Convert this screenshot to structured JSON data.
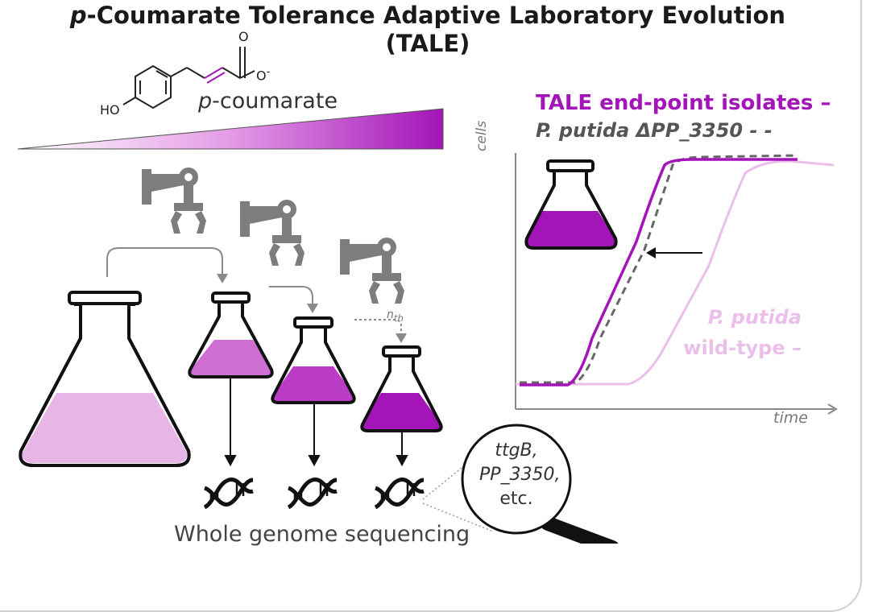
{
  "title": {
    "italic_prefix": "p",
    "rest_line1": "-Coumarate Tolerance Adaptive Laboratory Evolution",
    "line2": "(TALE)"
  },
  "molecule": {
    "ho": "HO",
    "o_top": "O",
    "o_neg": "O",
    "charge": "-",
    "name_prefix": "p",
    "name_rest": "-coumarate"
  },
  "legend": {
    "tale": "TALE end-point isolates –",
    "mutant": "P. putida ΔPP_3350 - -",
    "wt_line1": "P. putida",
    "wt_line2": "wild-type –"
  },
  "axes": {
    "y": "cells",
    "x": "time"
  },
  "transfer_label": {
    "base": "n",
    "sub": "th"
  },
  "lens": {
    "gene1": "ttgB,",
    "gene2": "PP_3350,",
    "etc": "etc."
  },
  "footer": "Whole genome sequencing",
  "colors": {
    "tale": "#a315b8",
    "mutant": "#666666",
    "wildtype": "#ebbfea",
    "flask_light": "#e7b5e6",
    "flask_mid": "#cf6ed5",
    "flask_dark": "#b01cc0",
    "robot": "#7d7d7d"
  },
  "icons": [
    "flask-icon",
    "robot-arm-icon",
    "dna-icon",
    "magnifier-icon",
    "arrow-icon"
  ]
}
